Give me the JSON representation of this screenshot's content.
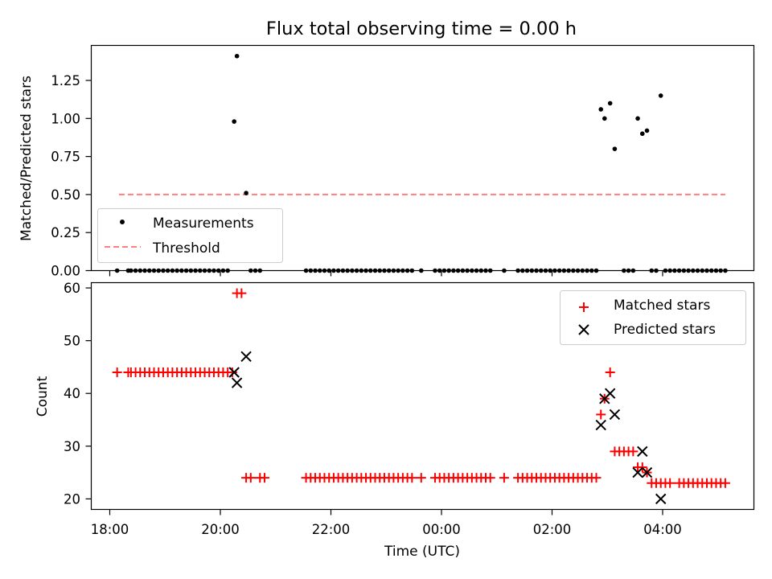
{
  "chart_data": [
    {
      "type": "scatter",
      "title": "Flux total observing time = 0.00 h",
      "xlabel": "",
      "ylabel": "Matched/Predicted stars",
      "xlim": [
        "17:50",
        "05:45"
      ],
      "ylim": [
        0,
        1.48
      ],
      "yticks": [
        0.0,
        0.25,
        0.5,
        0.75,
        1.0,
        1.25
      ],
      "ytick_labels": [
        "0.00",
        "0.25",
        "0.50",
        "0.75",
        "1.00",
        "1.25"
      ],
      "legend_position": "lower-left",
      "series": [
        {
          "name": "Measurements",
          "marker": "dot",
          "color": "#000000",
          "points": [
            [
              "20:15",
              0.98
            ],
            [
              "20:18",
              1.41
            ],
            [
              "20:28",
              0.51
            ],
            [
              "02:53",
              1.06
            ],
            [
              "02:57",
              1.0
            ],
            [
              "03:03",
              1.1
            ],
            [
              "03:08",
              0.8
            ],
            [
              "03:33",
              1.0
            ],
            [
              "03:38",
              0.9
            ],
            [
              "03:43",
              0.92
            ],
            [
              "03:58",
              1.15
            ]
          ]
        },
        {
          "name": "Measurements",
          "marker": "dot",
          "color": "#000000",
          "points_y": 0.0,
          "x": [
            "18:08",
            "18:20",
            "18:23",
            "18:28",
            "18:33",
            "18:38",
            "18:43",
            "18:48",
            "18:53",
            "18:58",
            "19:03",
            "19:08",
            "19:13",
            "19:18",
            "19:23",
            "19:28",
            "19:33",
            "19:38",
            "19:43",
            "19:48",
            "19:53",
            "19:58",
            "20:03",
            "20:08",
            "20:33",
            "20:38",
            "20:43",
            "21:33",
            "21:38",
            "21:43",
            "21:48",
            "21:53",
            "21:58",
            "22:03",
            "22:08",
            "22:13",
            "22:18",
            "22:23",
            "22:28",
            "22:33",
            "22:38",
            "22:43",
            "22:48",
            "22:53",
            "22:58",
            "23:03",
            "23:08",
            "23:13",
            "23:18",
            "23:23",
            "23:28",
            "23:38",
            "23:53",
            "23:58",
            "00:03",
            "00:08",
            "00:13",
            "00:18",
            "00:23",
            "00:28",
            "00:33",
            "00:38",
            "00:43",
            "00:48",
            "00:53",
            "01:08",
            "01:23",
            "01:28",
            "01:33",
            "01:38",
            "01:43",
            "01:48",
            "01:53",
            "01:58",
            "02:03",
            "02:08",
            "02:13",
            "02:18",
            "02:23",
            "02:28",
            "02:33",
            "02:38",
            "02:43",
            "02:48",
            "03:18",
            "03:23",
            "03:28",
            "03:48",
            "03:53",
            "04:03",
            "04:08",
            "04:13",
            "04:18",
            "04:23",
            "04:28",
            "04:33",
            "04:38",
            "04:43",
            "04:48",
            "04:53",
            "04:58",
            "05:03",
            "05:08"
          ]
        },
        {
          "name": "Threshold",
          "style": "dashed",
          "color": "#ff7f7f",
          "x": [
            "18:10",
            "05:08"
          ],
          "y": [
            0.5,
            0.5
          ]
        }
      ]
    },
    {
      "type": "scatter",
      "xlabel": "Time (UTC)",
      "ylabel": "Count",
      "xlim": [
        "17:50",
        "05:45"
      ],
      "ylim": [
        18,
        61
      ],
      "xtick_labels": [
        "18:00",
        "20:00",
        "22:00",
        "00:00",
        "02:00",
        "04:00"
      ],
      "yticks": [
        20,
        30,
        40,
        50,
        60
      ],
      "ytick_labels": [
        "20",
        "30",
        "40",
        "50",
        "60"
      ],
      "legend_position": "upper-right",
      "series": [
        {
          "name": "Matched stars",
          "marker": "plus",
          "color": "#ff0000",
          "segments": [
            {
              "y": 44,
              "x": [
                "18:08",
                "18:20",
                "18:23",
                "18:28",
                "18:33",
                "18:38",
                "18:43",
                "18:48",
                "18:53",
                "18:58",
                "19:03",
                "19:08",
                "19:13",
                "19:18",
                "19:23",
                "19:28",
                "19:33",
                "19:38",
                "19:43",
                "19:48",
                "19:53",
                "19:58",
                "20:03",
                "20:08",
                "20:13"
              ]
            },
            {
              "y": 59,
              "x": [
                "20:18",
                "20:23"
              ]
            },
            {
              "y": 24,
              "x": [
                "20:28",
                "20:33",
                "20:43",
                "20:48"
              ]
            },
            {
              "y": 24,
              "x": [
                "21:33",
                "21:38",
                "21:43",
                "21:48",
                "21:53",
                "21:58",
                "22:03",
                "22:08",
                "22:13",
                "22:18",
                "22:23",
                "22:28",
                "22:33",
                "22:38",
                "22:43",
                "22:48",
                "22:53",
                "22:58",
                "23:03",
                "23:08",
                "23:13",
                "23:18",
                "23:23",
                "23:28",
                "23:38"
              ]
            },
            {
              "y": 24,
              "x": [
                "23:53",
                "23:58",
                "00:03",
                "00:08",
                "00:13",
                "00:18",
                "00:23",
                "00:28",
                "00:33",
                "00:38",
                "00:43",
                "00:48",
                "00:53",
                "01:08"
              ]
            },
            {
              "y": 24,
              "x": [
                "01:23",
                "01:28",
                "01:33",
                "01:38",
                "01:43",
                "01:48",
                "01:53",
                "01:58",
                "02:03",
                "02:08",
                "02:13",
                "02:18",
                "02:23",
                "02:28",
                "02:33",
                "02:38",
                "02:43",
                "02:48"
              ]
            },
            {
              "y": 36,
              "x": [
                "02:53"
              ]
            },
            {
              "y": 39,
              "x": [
                "02:57"
              ]
            },
            {
              "y": 44,
              "x": [
                "03:03"
              ]
            },
            {
              "y": 29,
              "x": [
                "03:08",
                "03:13",
                "03:18",
                "03:23",
                "03:28"
              ]
            },
            {
              "y": 26,
              "x": [
                "03:33",
                "03:38"
              ]
            },
            {
              "y": 25,
              "x": [
                "03:43"
              ]
            },
            {
              "y": 23,
              "x": [
                "03:48",
                "03:53",
                "03:58",
                "04:03",
                "04:08",
                "04:18",
                "04:23",
                "04:28",
                "04:33",
                "04:38",
                "04:43",
                "04:48",
                "04:53",
                "04:58",
                "05:03",
                "05:08"
              ]
            }
          ]
        },
        {
          "name": "Predicted stars",
          "marker": "x",
          "color": "#000000",
          "points": [
            [
              "20:15",
              44
            ],
            [
              "20:18",
              42
            ],
            [
              "20:28",
              47
            ],
            [
              "02:53",
              34
            ],
            [
              "02:57",
              39
            ],
            [
              "03:03",
              40
            ],
            [
              "03:08",
              36
            ],
            [
              "03:33",
              25
            ],
            [
              "03:38",
              29
            ],
            [
              "03:43",
              25
            ],
            [
              "03:58",
              20
            ]
          ]
        }
      ]
    }
  ]
}
